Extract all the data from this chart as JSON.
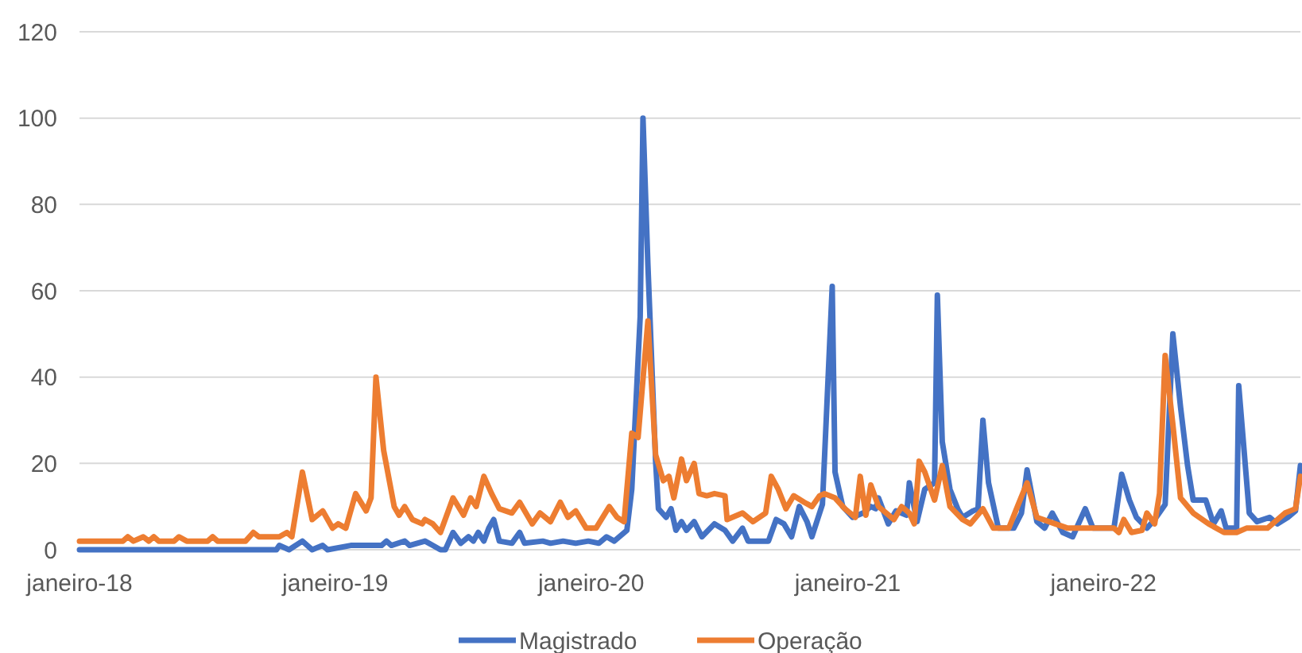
{
  "chart_data": {
    "type": "line",
    "xlim": [
      "2018-01-01",
      "2022-10-09"
    ],
    "xticks": [
      {
        "value": "2018-01",
        "label": "janeiro-18"
      },
      {
        "value": "2019-01",
        "label": "janeiro-19"
      },
      {
        "value": "2020-01",
        "label": "janeiro-20"
      },
      {
        "value": "2021-01",
        "label": "janeiro-21"
      },
      {
        "value": "2022-01",
        "label": "janeiro-22"
      }
    ],
    "ylim": [
      0,
      120
    ],
    "yticks": [
      0,
      20,
      40,
      60,
      80,
      100,
      120
    ],
    "grid": "y",
    "legend": "bottom",
    "series": [
      {
        "name": "Magistrado",
        "color": "#4472c4",
        "x": [
          "2018-01-01",
          "2018-10-09",
          "2018-10-13",
          "2018-10-27",
          "2018-11-15",
          "2018-11-22",
          "2018-11-29",
          "2018-12-14",
          "2018-12-21",
          "2019-01-23",
          "2019-03-08",
          "2019-03-15",
          "2019-03-22",
          "2019-04-10",
          "2019-04-17",
          "2019-05-09",
          "2019-05-20",
          "2019-05-31",
          "2019-06-07",
          "2019-06-18",
          "2019-06-29",
          "2019-07-10",
          "2019-07-17",
          "2019-07-24",
          "2019-08-01",
          "2019-08-08",
          "2019-08-15",
          "2019-08-23",
          "2019-09-10",
          "2019-09-21",
          "2019-09-28",
          "2019-10-24",
          "2019-11-04",
          "2019-11-22",
          "2019-12-10",
          "2019-12-28",
          "2020-01-12",
          "2020-01-23",
          "2020-02-03",
          "2020-02-21",
          "2020-02-28",
          "2020-03-11",
          "2020-03-15",
          "2020-03-22",
          "2020-04-02",
          "2020-04-06",
          "2020-04-17",
          "2020-04-24",
          "2020-05-01",
          "2020-05-09",
          "2020-05-16",
          "2020-05-27",
          "2020-06-07",
          "2020-06-25",
          "2020-07-10",
          "2020-07-21",
          "2020-08-04",
          "2020-08-12",
          "2020-09-10",
          "2020-09-21",
          "2020-10-02",
          "2020-10-13",
          "2020-10-24",
          "2020-11-04",
          "2020-11-11",
          "2020-11-26",
          "2020-12-10",
          "2020-12-14",
          "2020-12-25",
          "2021-01-08",
          "2021-01-23",
          "2021-02-03",
          "2021-02-10",
          "2021-02-14",
          "2021-02-28",
          "2021-03-11",
          "2021-03-26",
          "2021-03-30",
          "2021-04-10",
          "2021-04-21",
          "2021-05-05",
          "2021-05-09",
          "2021-05-16",
          "2021-05-27",
          "2021-06-07",
          "2021-06-14",
          "2021-06-29",
          "2021-07-06",
          "2021-07-13",
          "2021-07-21",
          "2021-08-04",
          "2021-08-26",
          "2021-09-06",
          "2021-09-14",
          "2021-09-28",
          "2021-10-09",
          "2021-10-20",
          "2021-11-04",
          "2021-11-18",
          "2021-12-06",
          "2021-12-17",
          "2022-01-16",
          "2022-01-27",
          "2022-02-07",
          "2022-02-17",
          "2022-03-04",
          "2022-03-15",
          "2022-03-30",
          "2022-04-10",
          "2022-04-21",
          "2022-05-01",
          "2022-05-09",
          "2022-05-27",
          "2022-06-07",
          "2022-06-18",
          "2022-06-25",
          "2022-07-10",
          "2022-07-13",
          "2022-07-28",
          "2022-08-08",
          "2022-08-26",
          "2022-09-06",
          "2022-09-21",
          "2022-10-02",
          "2022-10-09"
        ],
        "values": [
          0,
          0,
          1,
          0,
          2,
          1,
          0,
          1,
          0,
          1,
          1,
          2,
          1,
          2,
          1,
          2,
          1,
          0,
          0,
          4,
          1.5,
          3,
          2,
          4,
          2,
          5,
          7,
          2,
          1.5,
          4,
          1.5,
          2,
          1.5,
          2,
          1.5,
          2,
          1.5,
          3,
          2,
          4.5,
          14,
          54,
          100,
          66,
          20.5,
          9.5,
          7.5,
          9.5,
          4.5,
          6.5,
          4.5,
          6.5,
          3,
          6,
          4.5,
          2,
          5,
          2,
          2,
          7,
          6,
          3,
          10,
          6.5,
          3,
          10.5,
          61,
          18,
          10,
          7.5,
          8.5,
          10,
          9.5,
          12,
          6,
          9,
          8,
          15.5,
          6.5,
          14,
          15.5,
          59,
          25,
          14,
          9.5,
          7.5,
          9,
          9.5,
          30,
          15.5,
          5,
          5,
          8.5,
          18.5,
          6.5,
          5,
          8.5,
          4,
          3,
          9.5,
          5,
          5,
          17.5,
          11.5,
          7.5,
          5,
          7,
          10.5,
          50,
          33,
          19.5,
          11.5,
          11.5,
          6,
          9,
          5,
          5,
          38,
          8.5,
          6.5,
          7.5,
          6,
          7.5,
          9,
          19.5
        ]
      },
      {
        "name": "Operação",
        "color": "#ed7d31",
        "x": [
          "2018-01-01",
          "2018-03-04",
          "2018-03-11",
          "2018-03-19",
          "2018-04-02",
          "2018-04-10",
          "2018-04-17",
          "2018-04-24",
          "2018-05-16",
          "2018-05-23",
          "2018-06-03",
          "2018-07-03",
          "2018-07-10",
          "2018-07-17",
          "2018-08-26",
          "2018-09-06",
          "2018-09-14",
          "2018-10-13",
          "2018-10-24",
          "2018-10-31",
          "2018-11-15",
          "2018-11-29",
          "2018-12-14",
          "2018-12-28",
          "2019-01-05",
          "2019-01-16",
          "2019-01-30",
          "2019-02-14",
          "2019-02-21",
          "2019-02-28",
          "2019-03-11",
          "2019-03-26",
          "2019-04-02",
          "2019-04-10",
          "2019-04-21",
          "2019-05-05",
          "2019-05-09",
          "2019-05-20",
          "2019-05-31",
          "2019-06-18",
          "2019-07-03",
          "2019-07-13",
          "2019-07-21",
          "2019-08-01",
          "2019-08-12",
          "2019-08-23",
          "2019-09-10",
          "2019-09-21",
          "2019-10-09",
          "2019-10-20",
          "2019-11-04",
          "2019-11-18",
          "2019-11-29",
          "2019-12-10",
          "2019-12-25",
          "2020-01-08",
          "2020-01-27",
          "2020-02-07",
          "2020-02-17",
          "2020-02-28",
          "2020-03-08",
          "2020-03-22",
          "2020-04-02",
          "2020-04-13",
          "2020-04-21",
          "2020-04-28",
          "2020-05-09",
          "2020-05-16",
          "2020-05-27",
          "2020-06-03",
          "2020-06-14",
          "2020-06-25",
          "2020-07-10",
          "2020-07-13",
          "2020-08-04",
          "2020-08-19",
          "2020-09-06",
          "2020-09-14",
          "2020-09-24",
          "2020-10-05",
          "2020-10-16",
          "2020-10-31",
          "2020-11-11",
          "2020-11-22",
          "2020-11-29",
          "2020-12-14",
          "2020-12-28",
          "2021-01-12",
          "2021-01-19",
          "2021-01-27",
          "2021-02-03",
          "2021-02-14",
          "2021-03-08",
          "2021-03-19",
          "2021-03-30",
          "2021-04-06",
          "2021-04-13",
          "2021-04-21",
          "2021-05-05",
          "2021-05-16",
          "2021-05-27",
          "2021-06-14",
          "2021-06-25",
          "2021-07-13",
          "2021-07-28",
          "2021-08-19",
          "2021-08-30",
          "2021-09-14",
          "2021-09-28",
          "2021-10-24",
          "2021-11-11",
          "2021-12-06",
          "2022-01-16",
          "2022-01-23",
          "2022-01-30",
          "2022-02-10",
          "2022-02-25",
          "2022-03-04",
          "2022-03-15",
          "2022-03-22",
          "2022-03-30",
          "2022-04-10",
          "2022-04-21",
          "2022-05-09",
          "2022-05-31",
          "2022-06-22",
          "2022-07-10",
          "2022-07-24",
          "2022-08-23",
          "2022-09-17",
          "2022-10-02",
          "2022-10-09"
        ],
        "values": [
          2,
          2,
          3,
          2,
          3,
          2,
          3,
          2,
          2,
          3,
          2,
          2,
          3,
          2,
          2,
          4,
          3,
          3,
          4,
          3,
          18,
          7,
          9,
          5,
          6,
          5,
          13,
          9,
          12,
          40,
          23,
          10,
          8,
          10,
          7,
          6,
          7,
          6,
          4,
          12,
          8,
          12,
          10,
          17,
          13,
          9.5,
          8.5,
          11,
          6,
          8.5,
          6.5,
          11,
          7.5,
          9,
          5,
          5,
          10,
          7.5,
          6.5,
          27,
          26,
          53,
          22,
          16,
          17,
          12,
          21,
          16,
          20,
          13,
          12.5,
          13,
          12.5,
          7,
          8.5,
          6.5,
          8.5,
          17,
          14,
          9.5,
          12.5,
          11,
          10,
          12.5,
          13,
          12,
          9.5,
          7.5,
          17,
          8,
          15,
          10,
          7,
          10,
          8.5,
          6,
          20.5,
          18,
          11.5,
          19.5,
          10,
          7,
          6,
          9.5,
          5,
          5,
          9.5,
          15.5,
          7.5,
          6,
          5,
          5,
          5,
          4,
          7,
          4,
          4.5,
          8.5,
          6,
          13,
          45,
          29,
          12,
          8.5,
          6,
          4,
          4,
          5,
          5,
          8.5,
          9.5,
          17
        ]
      }
    ]
  }
}
